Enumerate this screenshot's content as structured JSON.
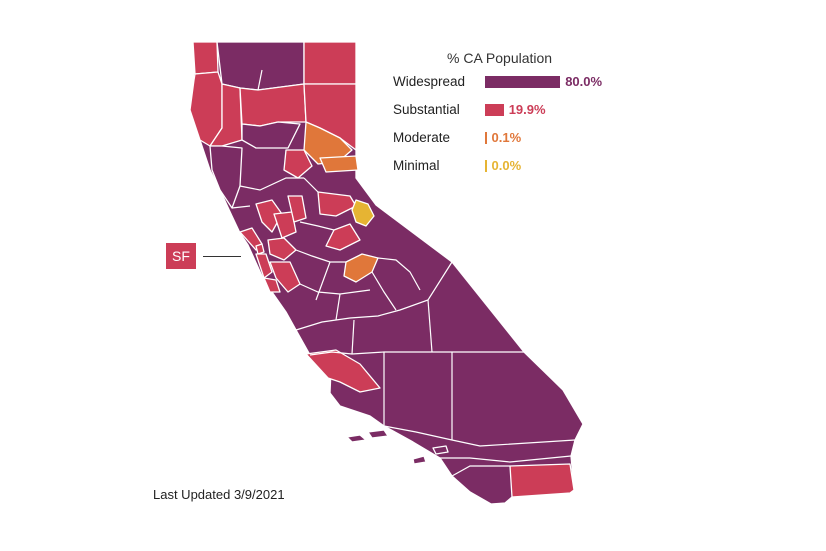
{
  "legend": {
    "title": "% CA Population",
    "items": [
      {
        "label": "Widespread",
        "value": "80.0%",
        "fraction": 0.8,
        "color": "#7b2c64"
      },
      {
        "label": "Substantial",
        "value": "19.9%",
        "fraction": 0.199,
        "color": "#cc3d57"
      },
      {
        "label": "Moderate",
        "value": "0.1%",
        "fraction": 0.001,
        "color": "#e0773a"
      },
      {
        "label": "Minimal",
        "value": "0.0%",
        "fraction": 0.0,
        "color": "#e6b433"
      }
    ]
  },
  "sf_label": "SF",
  "last_updated": "Last Updated 3/9/2021"
}
